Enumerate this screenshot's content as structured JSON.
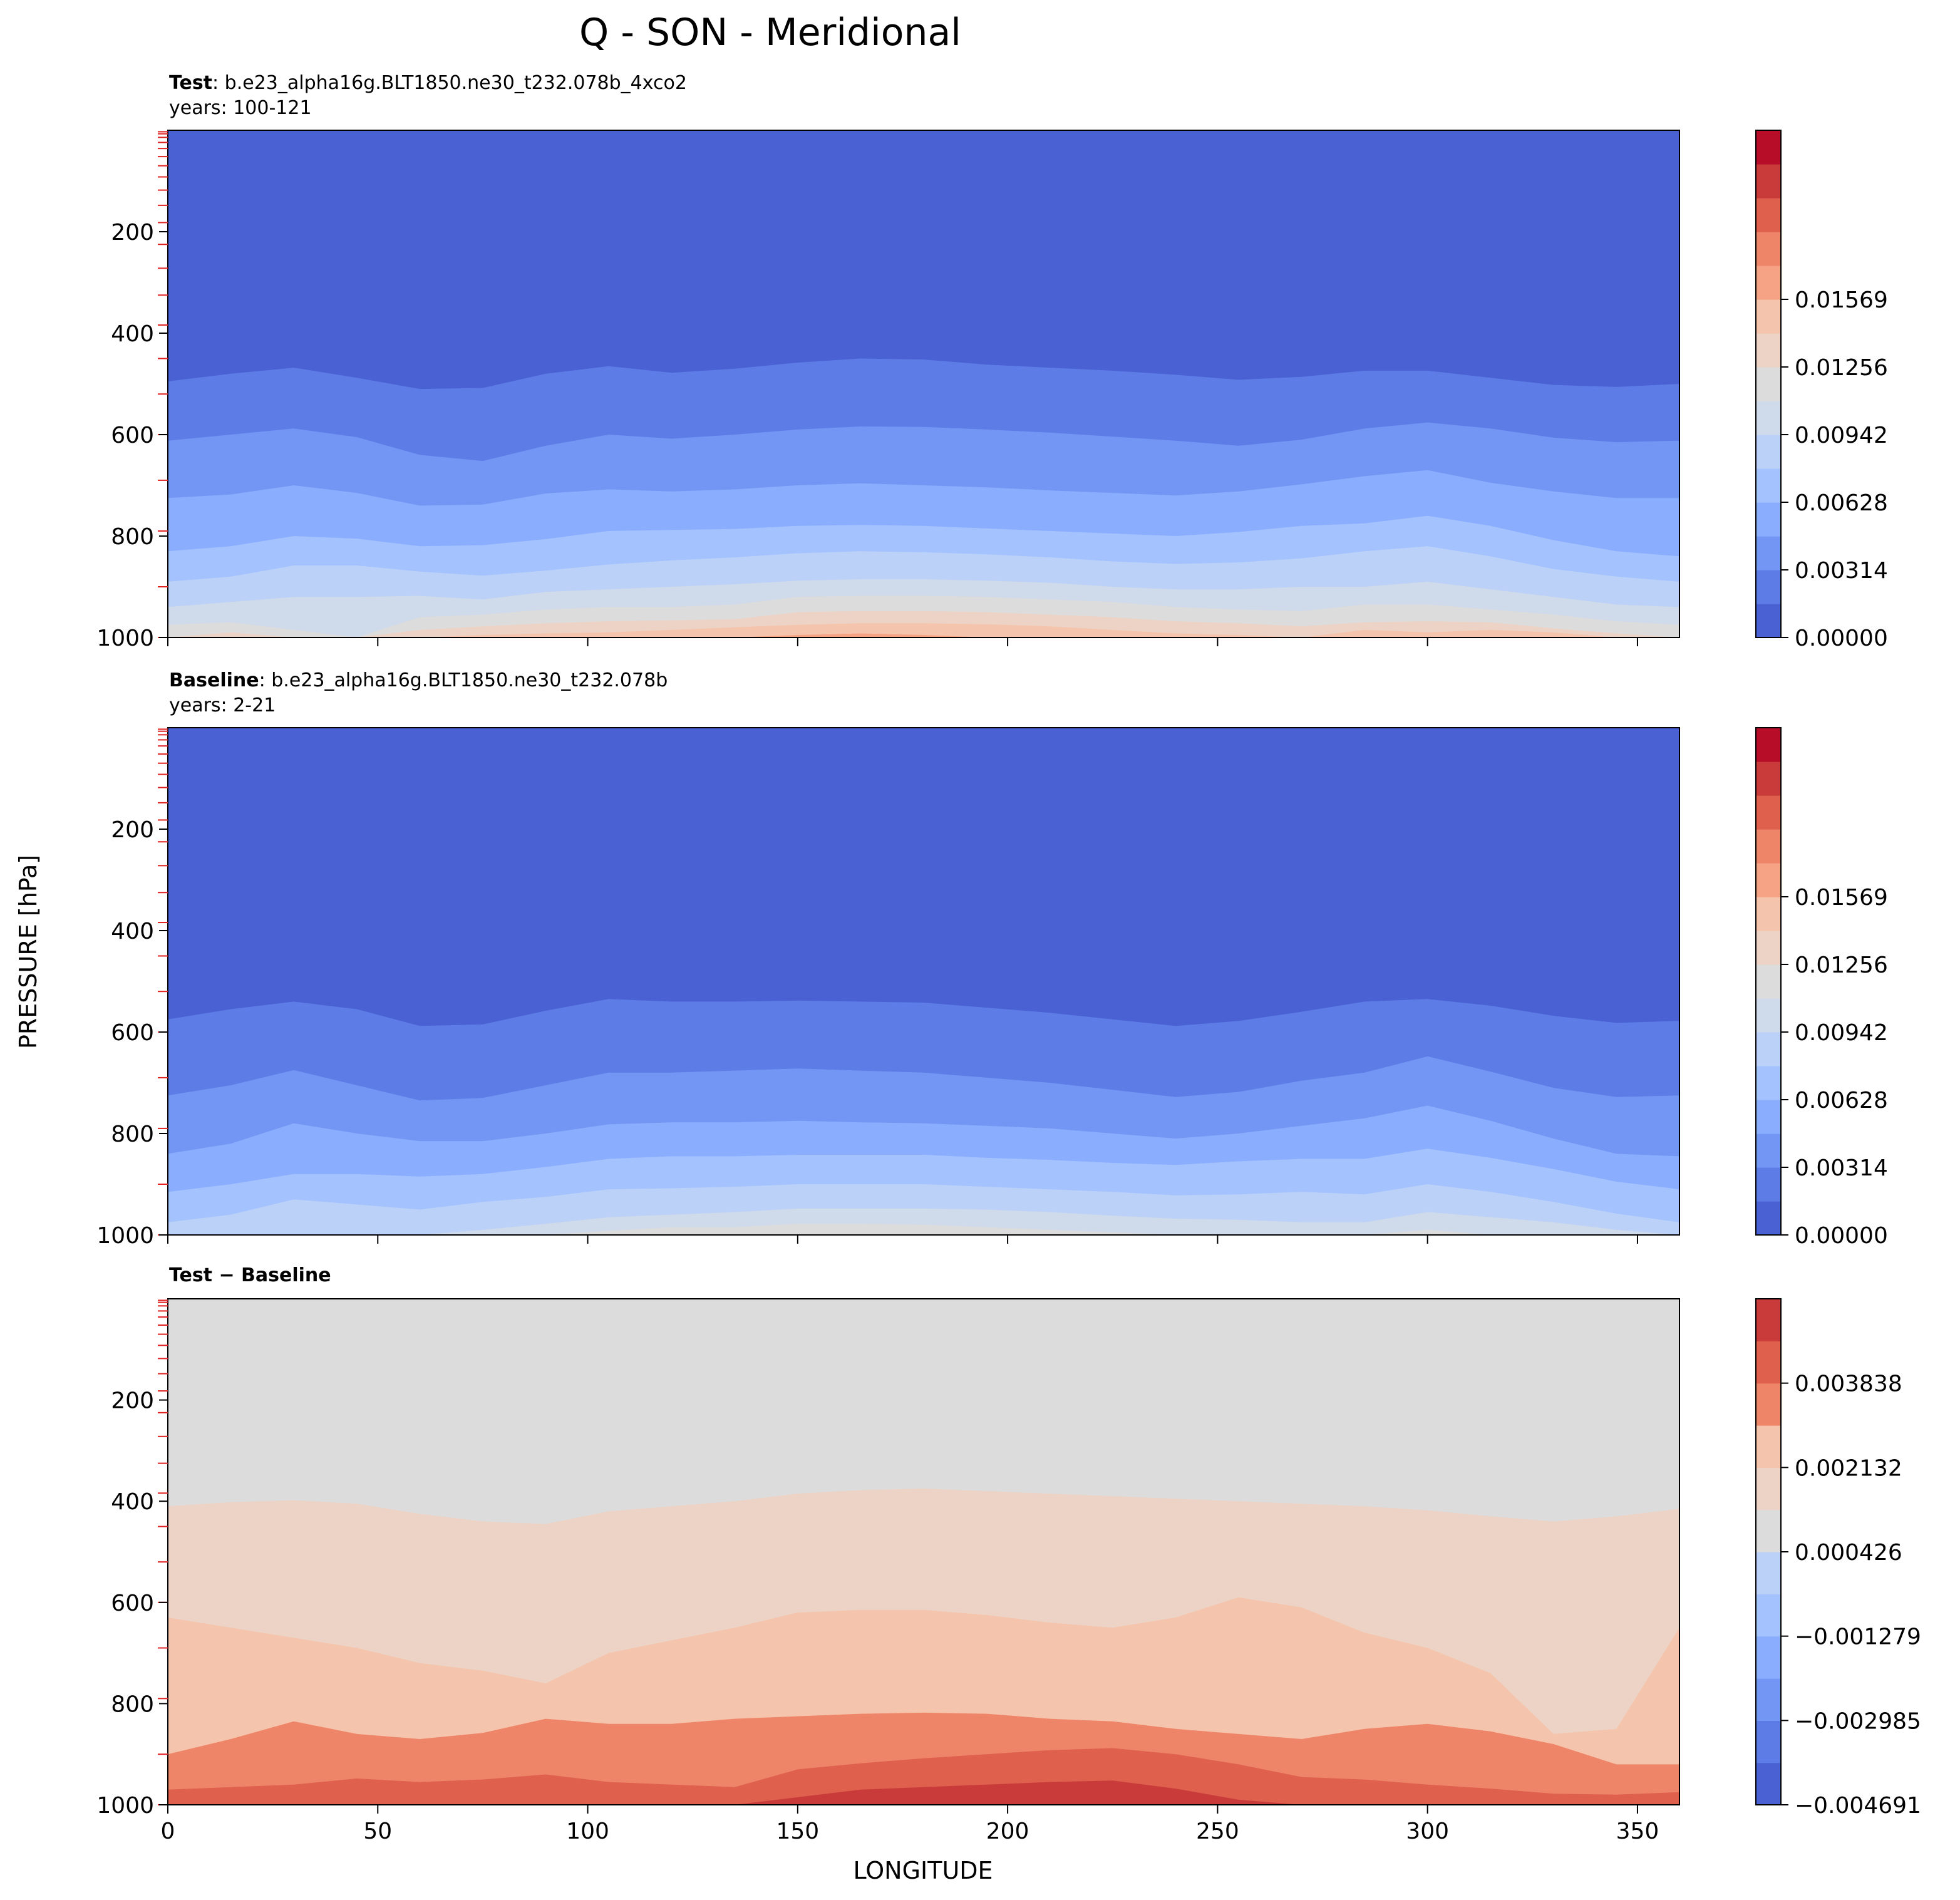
{
  "figure": {
    "title": "Q - SON - Meridional",
    "xlabel": "LONGITUDE",
    "ylabel": "PRESSURE [hPa]"
  },
  "chart_data": [
    {
      "type": "contour",
      "panel": "test",
      "label_bold": "Test",
      "label_rest": ": b.e23_alpha16g.BLT1850.ne30_t232.078b_4xco2",
      "years": "years: 100-121",
      "xlim": [
        0,
        360
      ],
      "ylim": [
        1000,
        0
      ],
      "x_ticks": [
        0,
        50,
        100,
        150,
        200,
        250,
        300,
        350
      ],
      "y_ticks": [
        200,
        400,
        600,
        800,
        1000
      ],
      "colorbar": {
        "ticks": [
          "0.00000",
          "0.00314",
          "0.00628",
          "0.00942",
          "0.01256",
          "0.01569"
        ],
        "colors": [
          "#4961d2",
          "#5d7ce6",
          "#7396f5",
          "#8badfd",
          "#a3c2fe",
          "#bbd1f8",
          "#cfdaea",
          "#dddcdc",
          "#ecd3c5",
          "#f5c4ac",
          "#f6a385",
          "#ee8468",
          "#de604d",
          "#c93b3a",
          "#b70d28"
        ]
      },
      "contour_boundaries": {
        "lon": [
          0,
          15,
          30,
          45,
          60,
          75,
          90,
          105,
          120,
          135,
          150,
          165,
          180,
          195,
          210,
          225,
          240,
          255,
          270,
          285,
          300,
          315,
          330,
          345,
          360
        ],
        "levels": [
          [
            495,
            480,
            468,
            488,
            510,
            508,
            480,
            465,
            478,
            470,
            458,
            450,
            452,
            462,
            468,
            474,
            482,
            492,
            486,
            474,
            474,
            488,
            502,
            506,
            500
          ],
          [
            612,
            600,
            588,
            605,
            640,
            652,
            622,
            600,
            608,
            600,
            590,
            584,
            585,
            590,
            596,
            604,
            612,
            622,
            610,
            588,
            576,
            588,
            606,
            615,
            612
          ],
          [
            725,
            718,
            700,
            715,
            740,
            738,
            716,
            708,
            712,
            708,
            700,
            696,
            700,
            704,
            710,
            715,
            720,
            712,
            698,
            682,
            670,
            695,
            712,
            725,
            725
          ],
          [
            830,
            820,
            800,
            805,
            820,
            818,
            806,
            790,
            788,
            786,
            780,
            778,
            780,
            785,
            790,
            795,
            800,
            792,
            780,
            775,
            760,
            780,
            808,
            830,
            840
          ],
          [
            890,
            880,
            858,
            858,
            870,
            878,
            868,
            856,
            848,
            842,
            834,
            830,
            832,
            836,
            842,
            850,
            855,
            852,
            844,
            830,
            820,
            840,
            865,
            880,
            890
          ],
          [
            940,
            930,
            920,
            920,
            918,
            925,
            910,
            905,
            900,
            895,
            888,
            885,
            885,
            888,
            892,
            900,
            905,
            905,
            900,
            900,
            890,
            905,
            920,
            935,
            940
          ],
          [
            975,
            970,
            985,
            1000,
            960,
            955,
            945,
            940,
            940,
            935,
            920,
            918,
            918,
            920,
            925,
            930,
            940,
            945,
            948,
            935,
            935,
            945,
            955,
            968,
            975
          ],
          [
            1000,
            990,
            1000,
            1000,
            985,
            978,
            972,
            968,
            966,
            964,
            950,
            948,
            948,
            950,
            955,
            960,
            968,
            972,
            978,
            970,
            968,
            970,
            982,
            992,
            1000
          ],
          [
            1000,
            1000,
            1000,
            1000,
            1000,
            995,
            992,
            990,
            985,
            980,
            975,
            972,
            972,
            974,
            978,
            985,
            992,
            995,
            1000,
            985,
            990,
            985,
            990,
            1000,
            1000
          ],
          [
            1000,
            1000,
            1000,
            1000,
            1000,
            1000,
            1000,
            1000,
            1000,
            1000,
            995,
            992,
            995,
            1000,
            1000,
            1000,
            1000,
            1000,
            1000,
            1000,
            1000,
            1000,
            1000,
            1000,
            1000
          ]
        ]
      }
    },
    {
      "type": "contour",
      "panel": "baseline",
      "label_bold": "Baseline",
      "label_rest": ": b.e23_alpha16g.BLT1850.ne30_t232.078b",
      "years": "years: 2-21",
      "xlim": [
        0,
        360
      ],
      "ylim": [
        1000,
        0
      ],
      "x_ticks": [
        0,
        50,
        100,
        150,
        200,
        250,
        300,
        350
      ],
      "y_ticks": [
        200,
        400,
        600,
        800,
        1000
      ],
      "colorbar": {
        "ticks": [
          "0.00000",
          "0.00314",
          "0.00628",
          "0.00942",
          "0.01256",
          "0.01569"
        ],
        "colors": [
          "#4961d2",
          "#5d7ce6",
          "#7396f5",
          "#8badfd",
          "#a3c2fe",
          "#bbd1f8",
          "#cfdaea",
          "#dddcdc",
          "#ecd3c5",
          "#f5c4ac",
          "#f6a385",
          "#ee8468",
          "#de604d",
          "#c93b3a",
          "#b70d28"
        ]
      },
      "contour_boundaries": {
        "lon": [
          0,
          15,
          30,
          45,
          60,
          75,
          90,
          105,
          120,
          135,
          150,
          165,
          180,
          195,
          210,
          225,
          240,
          255,
          270,
          285,
          300,
          315,
          330,
          345,
          360
        ],
        "levels": [
          [
            575,
            555,
            540,
            555,
            588,
            585,
            558,
            535,
            540,
            540,
            538,
            540,
            542,
            552,
            562,
            575,
            588,
            578,
            560,
            540,
            535,
            548,
            568,
            582,
            578
          ],
          [
            725,
            705,
            675,
            705,
            735,
            730,
            705,
            680,
            680,
            676,
            672,
            676,
            680,
            690,
            700,
            714,
            728,
            718,
            696,
            680,
            648,
            678,
            710,
            728,
            725
          ],
          [
            840,
            820,
            780,
            800,
            815,
            815,
            800,
            782,
            778,
            778,
            775,
            778,
            780,
            785,
            790,
            800,
            810,
            800,
            785,
            770,
            745,
            775,
            810,
            840,
            845
          ],
          [
            915,
            900,
            880,
            880,
            885,
            880,
            866,
            850,
            845,
            845,
            842,
            842,
            842,
            848,
            852,
            858,
            862,
            855,
            850,
            850,
            830,
            848,
            870,
            895,
            910
          ],
          [
            975,
            960,
            930,
            940,
            950,
            935,
            925,
            910,
            908,
            905,
            900,
            900,
            900,
            905,
            910,
            915,
            922,
            920,
            915,
            920,
            900,
            915,
            935,
            958,
            975
          ],
          [
            1000,
            1000,
            1000,
            1000,
            1000,
            990,
            978,
            965,
            960,
            955,
            948,
            948,
            948,
            950,
            955,
            962,
            968,
            970,
            975,
            975,
            955,
            965,
            975,
            990,
            1000
          ],
          [
            1000,
            1000,
            1000,
            1000,
            1000,
            1000,
            1000,
            992,
            985,
            985,
            978,
            978,
            980,
            985,
            990,
            995,
            1000,
            1000,
            1000,
            1000,
            990,
            1000,
            1000,
            1000,
            1000
          ]
        ]
      }
    },
    {
      "type": "contour",
      "panel": "difference",
      "label_bold": "Test − Baseline",
      "label_rest": "",
      "years": "",
      "xlim": [
        0,
        360
      ],
      "ylim": [
        1000,
        0
      ],
      "x_ticks": [
        0,
        50,
        100,
        150,
        200,
        250,
        300,
        350
      ],
      "y_ticks": [
        200,
        400,
        600,
        800,
        1000
      ],
      "colorbar": {
        "ticks": [
          "−0.004691",
          "−0.002985",
          "−0.001279",
          "0.000426",
          "0.002132",
          "0.003838"
        ],
        "colors": [
          "#4961d2",
          "#5d7ce6",
          "#7396f5",
          "#8badfd",
          "#a3c2fe",
          "#bbd1f8",
          "#dddcdc",
          "#ecd3c5",
          "#f5c4ac",
          "#ee8468",
          "#de604d",
          "#c93b3a"
        ]
      },
      "contour_boundaries": {
        "lon": [
          0,
          15,
          30,
          45,
          60,
          75,
          90,
          105,
          120,
          135,
          150,
          165,
          180,
          195,
          210,
          225,
          240,
          255,
          270,
          285,
          300,
          315,
          330,
          345,
          360
        ],
        "levels": [
          [
            410,
            402,
            398,
            405,
            425,
            440,
            445,
            420,
            410,
            400,
            385,
            378,
            375,
            380,
            385,
            390,
            395,
            400,
            405,
            410,
            418,
            430,
            440,
            430,
            415
          ],
          [
            630,
            650,
            670,
            690,
            720,
            735,
            760,
            700,
            675,
            650,
            620,
            615,
            615,
            625,
            640,
            650,
            630,
            590,
            610,
            660,
            690,
            740,
            860,
            850,
            650
          ],
          [
            900,
            870,
            835,
            860,
            870,
            858,
            830,
            840,
            840,
            830,
            825,
            820,
            818,
            820,
            830,
            835,
            850,
            860,
            870,
            850,
            840,
            855,
            880,
            920,
            920
          ],
          [
            970,
            965,
            960,
            948,
            955,
            950,
            940,
            955,
            960,
            965,
            930,
            918,
            908,
            900,
            892,
            888,
            900,
            920,
            945,
            950,
            960,
            968,
            978,
            980,
            975
          ],
          [
            1000,
            1000,
            1000,
            1000,
            1000,
            1000,
            1000,
            1000,
            1000,
            1000,
            985,
            970,
            965,
            960,
            955,
            952,
            968,
            990,
            1000,
            1000,
            1000,
            1000,
            1000,
            1000,
            1000
          ],
          [
            1000,
            1000,
            1000,
            1000,
            1000,
            1000,
            1000,
            1000,
            1000,
            1000,
            1000,
            995,
            990,
            985,
            980,
            978,
            992,
            1000,
            1000,
            1000,
            1000,
            1000,
            1000,
            1000,
            1000
          ]
        ]
      }
    }
  ]
}
